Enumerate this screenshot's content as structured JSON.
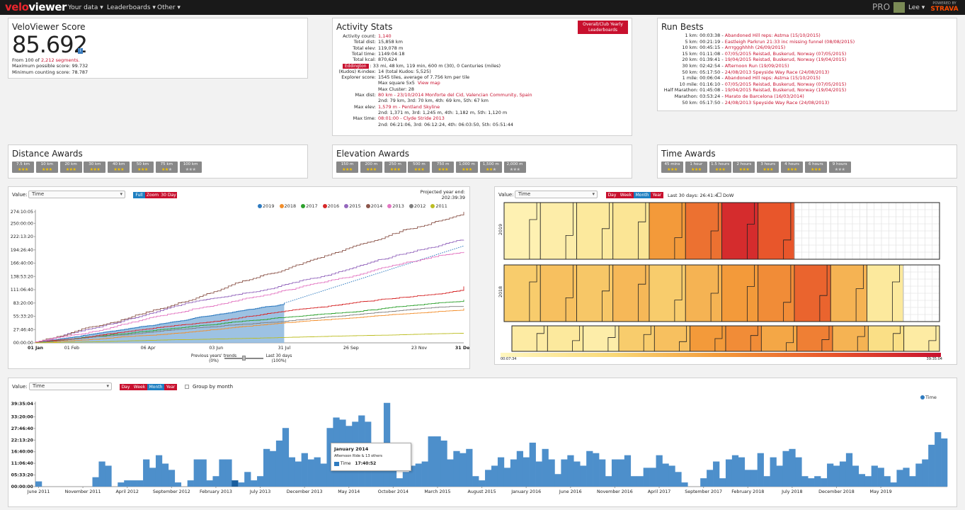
{
  "nav": {
    "logo_a": "velo",
    "logo_b": "viewer",
    "menu": [
      "Your data ▾",
      "Leaderboards ▾",
      "Other ▾"
    ],
    "pro": "PRO",
    "user": "Lee ▾",
    "powered": "POWERED BY",
    "strava": "STRAVA"
  },
  "score": {
    "title": "VeloViewer Score",
    "value": "85.692",
    "from_prefix": "From 100 of ",
    "segments": "2,212 segments.",
    "max_possible": "Maximum possible score: 99.732",
    "min_counting": "Minimum counting score: 78.787",
    "info": "i"
  },
  "activity": {
    "title": "Activity Stats",
    "leaderboards_btn": "Overall/Club Yearly Leaderboards",
    "eddington_btn": "Eddington",
    "rows": [
      {
        "label": "Activity count:",
        "value": "1,140",
        "red": true
      },
      {
        "label": "Total dist:",
        "value": "15,858 km",
        "red": false
      },
      {
        "label": "Total elev:",
        "value": "119,078 m",
        "red": false
      },
      {
        "label": "Total time:",
        "value": "1149:04:18",
        "red": false
      },
      {
        "label": "Total kcal:",
        "value": "870,624",
        "red": false
      },
      {
        "label": "",
        "value": ": 33 mi, 48 km, 119 min, 600 m (30), 0 Centuries (miles)",
        "red": false
      },
      {
        "label": "(Kudos) K-index:",
        "value": "14 (total Kudos: 5,525)",
        "red": false
      },
      {
        "label": "Explorer score:",
        "value": "1545 tiles, average of 7.756 km per tile",
        "red": false
      },
      {
        "label": "",
        "value": "Max square 5x5",
        "red": false,
        "extra": "View map"
      },
      {
        "label": "",
        "value": "Max Cluster: 28",
        "red": false
      },
      {
        "label": "Max dist:",
        "value": "80 km - 23/10/2014 Monforte del Cid, Valencian Community, Spain",
        "red": true
      },
      {
        "label": "",
        "value": "2nd: 79 km, 3rd: 70 km, 4th: 69 km, 5th: 67 km",
        "red": false
      },
      {
        "label": "Max elev:",
        "value": "1,579 m - Pentland Skyline",
        "red": true
      },
      {
        "label": "",
        "value": "2nd: 1,371 m, 3rd: 1,245 m, 4th: 1,182 m, 5th: 1,120 m",
        "red": false
      },
      {
        "label": "Max time:",
        "value": "08:01:00 - Clyde Stride 2013",
        "red": true
      },
      {
        "label": "",
        "value": "2nd: 06:21:06, 3rd: 06:12:24, 4th: 06:03:50, 5th: 05:51:44",
        "red": false
      }
    ]
  },
  "runbests": {
    "title": "Run Bests",
    "rows": [
      {
        "label": "1 km:",
        "time": "00:03:38",
        "desc": "Abandoned Hill reps: Astma (15/10/2015)"
      },
      {
        "label": "5 km:",
        "time": "00:21:19",
        "desc": "Eastleigh Parkrun 21:33 inc missing funnel (08/08/2015)"
      },
      {
        "label": "10 km:",
        "time": "00:45:15",
        "desc": "Arrrggghhhh (26/09/2015)"
      },
      {
        "label": "15 km:",
        "time": "01:11:08",
        "desc": "07/05/2015 Reistad, Buskerud, Norway (07/05/2015)"
      },
      {
        "label": "20 km:",
        "time": "01:39:41",
        "desc": "19/04/2015 Reistad, Buskerud, Norway (19/04/2015)"
      },
      {
        "label": "30 km:",
        "time": "02:42:54",
        "desc": "Afternoon Run (19/09/2015)"
      },
      {
        "label": "50 km:",
        "time": "05:17:50",
        "desc": "24/08/2013 Speyside Way Race (24/08/2013)"
      },
      {
        "label": "1 mile:",
        "time": "00:06:04",
        "desc": "Abandoned Hill reps: Astma (15/10/2015)"
      },
      {
        "label": "10 mile:",
        "time": "01:16:10",
        "desc": "07/05/2015 Reistad, Buskerud, Norway (07/05/2015)"
      },
      {
        "label": "Half Marathon:",
        "time": "01:45:08",
        "desc": "19/04/2015 Reistad, Buskerud, Norway (19/04/2015)"
      },
      {
        "label": "Marathon:",
        "time": "03:53:24",
        "desc": "Marato de Barcelona (16/03/2014)"
      },
      {
        "label": "50 km:",
        "time": "05:17:50",
        "desc": "24/08/2013 Speyside Way Race (24/08/2013)"
      }
    ]
  },
  "distance_awards": {
    "title": "Distance Awards",
    "items": [
      {
        "label": "7.5 km",
        "gold": 3
      },
      {
        "label": "10 km",
        "gold": 3
      },
      {
        "label": "20 km",
        "gold": 3
      },
      {
        "label": "30 km",
        "gold": 3
      },
      {
        "label": "40 km",
        "gold": 3
      },
      {
        "label": "50 km",
        "gold": 3
      },
      {
        "label": "75 km",
        "gold": 2
      },
      {
        "label": "100 km",
        "gold": 0
      }
    ]
  },
  "elevation_awards": {
    "title": "Elevation Awards",
    "items": [
      {
        "label": "150 m",
        "gold": 3
      },
      {
        "label": "200 m",
        "gold": 3
      },
      {
        "label": "250 m",
        "gold": 3
      },
      {
        "label": "500 m",
        "gold": 3
      },
      {
        "label": "750 m",
        "gold": 3
      },
      {
        "label": "1,000 m",
        "gold": 3
      },
      {
        "label": "1,500 m",
        "gold": 2
      },
      {
        "label": "2,000 m",
        "gold": 0
      }
    ]
  },
  "time_awards": {
    "title": "Time Awards",
    "items": [
      {
        "label": "45 mins",
        "gold": 3
      },
      {
        "label": "1 hour",
        "gold": 3
      },
      {
        "label": "1.5 hours",
        "gold": 3
      },
      {
        "label": "2 hours",
        "gold": 3
      },
      {
        "label": "3 hours",
        "gold": 3
      },
      {
        "label": "4 hours",
        "gold": 3
      },
      {
        "label": "6 hours",
        "gold": 3
      },
      {
        "label": "9 hours",
        "gold": 0
      }
    ]
  },
  "cumulative": {
    "value_label": "Value:",
    "select": "Time",
    "buttons": [
      "Full",
      "Zoom",
      "30 Day"
    ],
    "projected_label": "Projected year end:",
    "projected_value": "202:39:39",
    "trends_left": "Previous years' trends (0%)",
    "trends_right": "Last 30 days (100%)"
  },
  "heatmap": {
    "value_label": "Value:",
    "select": "Time",
    "buttons": [
      "Day",
      "Week",
      "Month",
      "Year"
    ],
    "last30": "Last 30 days: 26:41:45",
    "dow": "DoW",
    "scale_min": "00:07:34",
    "scale_max": "39:35:04",
    "row_labels": [
      "2019",
      "2018"
    ],
    "rows": [
      [
        0.05,
        0.08,
        0.12,
        0.15,
        0.5,
        0.65,
        0.9,
        0.75,
        null,
        null,
        null,
        null
      ],
      [
        0.3,
        0.35,
        0.32,
        0.38,
        0.3,
        0.4,
        0.5,
        0.55,
        0.7,
        0.4,
        0.12,
        null
      ],
      [
        0.1,
        0.12,
        0.08,
        0.3,
        0.35,
        0.5,
        0.55,
        0.45,
        0.6,
        0.4,
        0.2,
        0.1
      ]
    ]
  },
  "bottom": {
    "value_label": "Value:",
    "select": "Time",
    "buttons": [
      "Day",
      "Week",
      "Month",
      "Year"
    ],
    "group": "Group by month",
    "tooltip_title": "January 2014",
    "tooltip_sub": "Afternoon Ride & 13 others",
    "tooltip_label": "Time",
    "tooltip_value": "17:40:52"
  },
  "chart_data": [
    {
      "type": "line",
      "title": "",
      "xlabel": "",
      "ylabel": "",
      "x_ticks": [
        "01 Jan",
        "01 Feb",
        "06 Apr",
        "03 Jun",
        "31 Jul",
        "26 Sep",
        "23 Nov",
        "31 Dec"
      ],
      "y_ticks": [
        "00:00:00",
        "27:46:40",
        "55:33:20",
        "83:20:00",
        "111:06:40",
        "138:53:20",
        "166:40:00",
        "194:26:40",
        "222:13:20",
        "250:00:00",
        "274:10:05"
      ],
      "ylim": [
        0,
        274.17
      ],
      "legend_position": "top-right",
      "series": [
        {
          "name": "2019",
          "color": "#2f7bc0",
          "end_day": 212,
          "end_hours": 83,
          "projected_hours": 202.66,
          "filled": true
        },
        {
          "name": "2018",
          "color": "#f28e2b",
          "end_day": 365,
          "end_hours": 72
        },
        {
          "name": "2017",
          "color": "#2ca02c",
          "end_day": 365,
          "end_hours": 90
        },
        {
          "name": "2016",
          "color": "#d62728",
          "end_day": 365,
          "end_hours": 118
        },
        {
          "name": "2015",
          "color": "#9467bd",
          "end_day": 365,
          "end_hours": 215
        },
        {
          "name": "2014",
          "color": "#8c564b",
          "end_day": 365,
          "end_hours": 274
        },
        {
          "name": "2013",
          "color": "#e377c2",
          "end_day": 365,
          "end_hours": 190
        },
        {
          "name": "2012",
          "color": "#7f7f7f",
          "end_day": 365,
          "end_hours": 76
        },
        {
          "name": "2011",
          "color": "#bcbd22",
          "end_day": 365,
          "end_hours": 20
        }
      ]
    },
    {
      "type": "bar",
      "title": "",
      "xlabel": "",
      "ylabel": "",
      "legend": [
        "Time"
      ],
      "y_ticks": [
        "00:00:00",
        "05:33:20",
        "11:06:40",
        "16:40:00",
        "22:13:20",
        "27:46:40",
        "33:20:00",
        "39:35:04"
      ],
      "ylim": [
        0,
        39.58
      ],
      "x_ticks": [
        "June 2011",
        "November 2011",
        "April 2012",
        "September 2012",
        "February 2013",
        "July 2013",
        "December 2013",
        "May 2014",
        "October 2014",
        "March 2015",
        "August 2015",
        "January 2016",
        "June 2016",
        "November 2016",
        "April 2017",
        "September 2017",
        "February 2018",
        "July 2018",
        "December 2018",
        "May 2019"
      ],
      "values": [
        2.5,
        0,
        0,
        0,
        0,
        0,
        0,
        0,
        0,
        4.5,
        12,
        10,
        0,
        2,
        3,
        3,
        3,
        13,
        9,
        15,
        11,
        8,
        2,
        0,
        3,
        13,
        13,
        3,
        5,
        13,
        13,
        3,
        2,
        7,
        3,
        5,
        18,
        17,
        22,
        28,
        14,
        12,
        16,
        13,
        14,
        11,
        28,
        33,
        32,
        29,
        31,
        34,
        31,
        19,
        17,
        40,
        20,
        4,
        7,
        10,
        11,
        12,
        24,
        24,
        22,
        13,
        17,
        16,
        18,
        5,
        3,
        8,
        10,
        14,
        9,
        13,
        17,
        14,
        21,
        12,
        18,
        13,
        6,
        13,
        15,
        12,
        10,
        17,
        16,
        13,
        5,
        13,
        13,
        15,
        5,
        5,
        9,
        9,
        15,
        11,
        10,
        7,
        2,
        0,
        0,
        4,
        8,
        12,
        4,
        13,
        15,
        14,
        8,
        8,
        16,
        5,
        14,
        10,
        17,
        18,
        14,
        5,
        4,
        5,
        4,
        11,
        10,
        12,
        16,
        10,
        6,
        5,
        10,
        9,
        5,
        2,
        8,
        9,
        5,
        11,
        13,
        20,
        26,
        23
      ]
    }
  ]
}
